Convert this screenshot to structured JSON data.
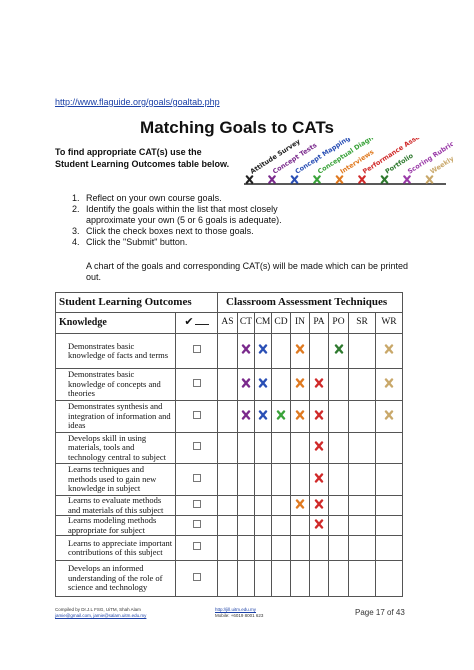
{
  "url": "http://www.flaguide.org/goals/goaltab.php",
  "title": "Matching Goals to CATs",
  "intro": [
    "To find appropriate CAT(s) use the",
    "Student Learning Outcomes table below."
  ],
  "graphic": {
    "labels": [
      {
        "text": "Attitude Survey",
        "color": "#222222"
      },
      {
        "text": "Concept Tests",
        "color": "#7a2a8c"
      },
      {
        "text": "Concept Mapping",
        "color": "#2a4fb5"
      },
      {
        "text": "Conceptual Diagnostic Tests",
        "color": "#3aa33a"
      },
      {
        "text": "Interviews",
        "color": "#e07a20"
      },
      {
        "text": "Performance Assessment",
        "color": "#d02a2a"
      },
      {
        "text": "Portfolio",
        "color": "#2f7a2f"
      },
      {
        "text": "Scoring Rubrics",
        "color": "#9a3aa8"
      },
      {
        "text": "Weekly Reports",
        "color": "#c9a86a"
      }
    ]
  },
  "steps": [
    {
      "number": "1.",
      "text": "Reflect on your own course goals."
    },
    {
      "number": "2.",
      "text": "Identify the goals within the list that most closely approximate your own (5 or 6 goals is adequate)."
    },
    {
      "number": "3.",
      "text": "Click the check boxes next to those goals."
    },
    {
      "number": "4.",
      "text": "Click the \"Submit\" button."
    }
  ],
  "note": "A chart of the goals and corresponding CAT(s) will be made which can be printed out.",
  "table": {
    "header": [
      "Student Learning Outcomes",
      "Classroom Assessment Techniques"
    ],
    "section": "Knowledge",
    "check_header": "✔",
    "columns": [
      {
        "label": "AS",
        "color": "#222222"
      },
      {
        "label": "CT",
        "color": "#7a2a8c"
      },
      {
        "label": "CM",
        "color": "#2a4fb5"
      },
      {
        "label": "CD",
        "color": "#3aa33a"
      },
      {
        "label": "IN",
        "color": "#e07a20"
      },
      {
        "label": "PA",
        "color": "#d02a2a"
      },
      {
        "label": "PO",
        "color": "#2f7a2f"
      },
      {
        "label": "SR",
        "color": "#9a3aa8"
      },
      {
        "label": "WR",
        "color": "#c9a86a"
      }
    ],
    "rows": [
      {
        "text": "Demonstrates basic knowledge of facts and terms",
        "marks": [
          false,
          true,
          true,
          false,
          true,
          false,
          true,
          false,
          true
        ]
      },
      {
        "text": "Demonstrates basic knowledge of concepts and theories",
        "marks": [
          false,
          true,
          true,
          false,
          true,
          true,
          false,
          false,
          true
        ]
      },
      {
        "text": "Demonstrates synthesis and integration of information and ideas",
        "marks": [
          false,
          true,
          true,
          true,
          true,
          true,
          false,
          false,
          true
        ]
      },
      {
        "text": "Develops skill in using materials, tools and technology central to subject",
        "marks": [
          false,
          false,
          false,
          false,
          false,
          true,
          false,
          false,
          false
        ]
      },
      {
        "text": "Learns techniques and methods used to gain new knowledge in subject",
        "marks": [
          false,
          false,
          false,
          false,
          false,
          true,
          false,
          false,
          false
        ]
      },
      {
        "text": "Learns to evaluate methods and materials of this subject",
        "marks": [
          false,
          false,
          false,
          false,
          true,
          true,
          false,
          false,
          false
        ]
      },
      {
        "text": "Learns modeling methods appropriate for subject",
        "marks": [
          false,
          false,
          false,
          false,
          false,
          true,
          false,
          false,
          false
        ]
      },
      {
        "text": "Learns to appreciate important contributions of this subject",
        "marks": [
          false,
          false,
          false,
          false,
          false,
          false,
          false,
          false,
          false
        ]
      },
      {
        "text": "Develops an informed understanding of the role of science and technology",
        "marks": [
          false,
          false,
          false,
          false,
          false,
          false,
          false,
          false,
          false
        ]
      }
    ]
  },
  "footer": {
    "left": [
      "Compiled by Dr.J.L FSG, UiTM, Shah Alam",
      "jamie@gmail.com, jamie@salam.uitm.edu.my"
    ],
    "center": [
      "http://jill.uitm.edu.my",
      "Mobile: +6019 8001 623"
    ],
    "page": "Page 17 of 43"
  }
}
